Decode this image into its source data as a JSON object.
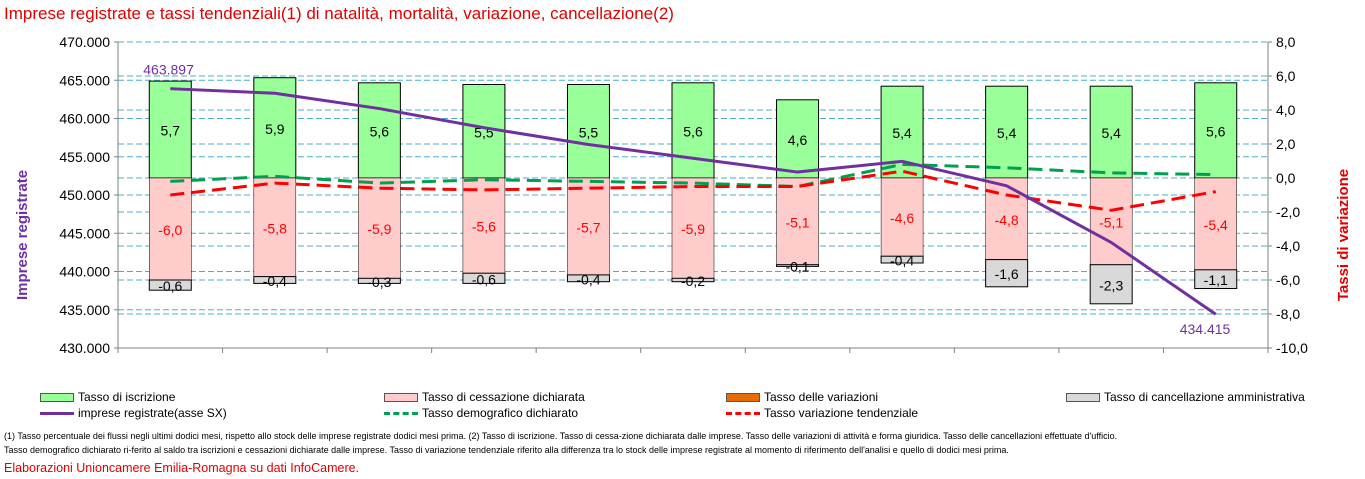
{
  "title": "Imprese registrate e tassi tendenziali(1) di natalità, mortalità, variazione, cancellazione(2)",
  "chart_data": {
    "type": "bar",
    "n_periods": 11,
    "left_axis": {
      "label": "Imprese registrate",
      "label_color": "#7030a0",
      "ylim": [
        430000,
        470000
      ],
      "ticks": [
        "430.000",
        "435.000",
        "440.000",
        "445.000",
        "450.000",
        "455.000",
        "460.000",
        "465.000",
        "470.000"
      ]
    },
    "right_axis": {
      "label": "Tassi di variazione",
      "label_color": "#e00000",
      "ylim": [
        -10,
        8
      ],
      "ticks": [
        "-10,0",
        "-8,0",
        "-6,0",
        "-4,0",
        "-2,0",
        "0,0",
        "2,0",
        "4,0",
        "6,0",
        "8,0"
      ]
    },
    "grid": true,
    "series": [
      {
        "name": "Tasso di iscrizione",
        "kind": "bar_stacked",
        "color": "#99ff99",
        "values": [
          5.7,
          5.9,
          5.6,
          5.5,
          5.5,
          5.6,
          4.6,
          5.4,
          5.4,
          5.4,
          5.6
        ],
        "labels": [
          "5,7",
          "5,9",
          "5,6",
          "5,5",
          "5,5",
          "5,6",
          "4,6",
          "5,4",
          "5,4",
          "5,4",
          "5,6"
        ]
      },
      {
        "name": "Tasso di cessazione dichiarata",
        "kind": "bar_stacked",
        "color": "#ffcccc",
        "values": [
          -6.0,
          -5.8,
          -5.9,
          -5.6,
          -5.7,
          -5.9,
          -5.1,
          -4.6,
          -4.8,
          -5.1,
          -5.4
        ],
        "labels": [
          "-6,0",
          "-5,8",
          "-5,9",
          "-5,6",
          "-5,7",
          "-5,9",
          "-5,1",
          "-4,6",
          "-4,8",
          "-5,1",
          "-5,4"
        ]
      },
      {
        "name": "Tasso delle variazioni",
        "kind": "bar_stacked",
        "color": "#e46c0a",
        "values": [
          0,
          0,
          0,
          0,
          0,
          0,
          0,
          0,
          0,
          0,
          0
        ]
      },
      {
        "name": "Tasso di cancellazione amministrativa",
        "kind": "bar_stacked",
        "color": "#d9d9d9",
        "values": [
          -0.6,
          -0.4,
          -0.3,
          -0.6,
          -0.4,
          -0.2,
          -0.1,
          -0.4,
          -1.6,
          -2.3,
          -1.1
        ],
        "labels": [
          "-0,6",
          "-0,4",
          "-0,3",
          "-0,6",
          "-0,4",
          "-0,2",
          "-0,1",
          "-0,4",
          "-1,6",
          "-2,3",
          "-1,1"
        ]
      },
      {
        "name": "imprese registrate(asse SX)",
        "kind": "line",
        "axis": "left",
        "color": "#7030a0",
        "values": [
          463897,
          463300,
          461300,
          458800,
          456600,
          454800,
          453000,
          454400,
          451200,
          443800,
          434415
        ],
        "first_label": "463.897",
        "last_label": "434.415"
      },
      {
        "name": "Tasso demografico dichiarato",
        "kind": "line",
        "axis": "right",
        "color": "#00a050",
        "values": [
          -0.2,
          0.1,
          -0.3,
          -0.1,
          -0.2,
          -0.3,
          -0.5,
          0.8,
          0.6,
          0.3,
          0.2
        ]
      },
      {
        "name": "Tasso variazione tendenziale",
        "kind": "line",
        "axis": "right",
        "color": "#ff0000",
        "values": [
          -1.0,
          -0.3,
          -0.6,
          -0.7,
          -0.6,
          -0.5,
          -0.5,
          0.4,
          -1.0,
          -1.9,
          -0.8
        ]
      }
    ]
  },
  "legend": {
    "row1": [
      "Tasso di iscrizione",
      "Tasso di cessazione dichiarata",
      "Tasso delle variazioni",
      "Tasso di cancellazione amministrativa"
    ],
    "row2": [
      "impresе registrate(asse SX)",
      "Tasso demografico dichiarato",
      "Tasso variazione tendenziale"
    ]
  },
  "notes": {
    "line1": "(1) Tasso percentuale dei flussi negli ultimi dodici mesi, rispetto allo stock delle imprese registrate dodici mesi prima. (2) Tasso di iscrizione. Tasso di cessa-zione dichiarata dalle imprese. Tasso delle variazioni di attività e forma giuridica. Tasso delle cancellazioni effettuate d'ufficio.",
    "line2": "Tasso demografico dichiarato ri-ferito al saldo tra iscrizioni e cessazioni dichiarate dalle imprese. Tasso di variazione tendenziale riferito alla differenza tra lo stock delle imprese registrate al momento di riferimento dell'analisi e quello di dodici mesi prima."
  },
  "source": "Elaborazioni Unioncamere Emilia-Romagna su dati InfoCamere."
}
